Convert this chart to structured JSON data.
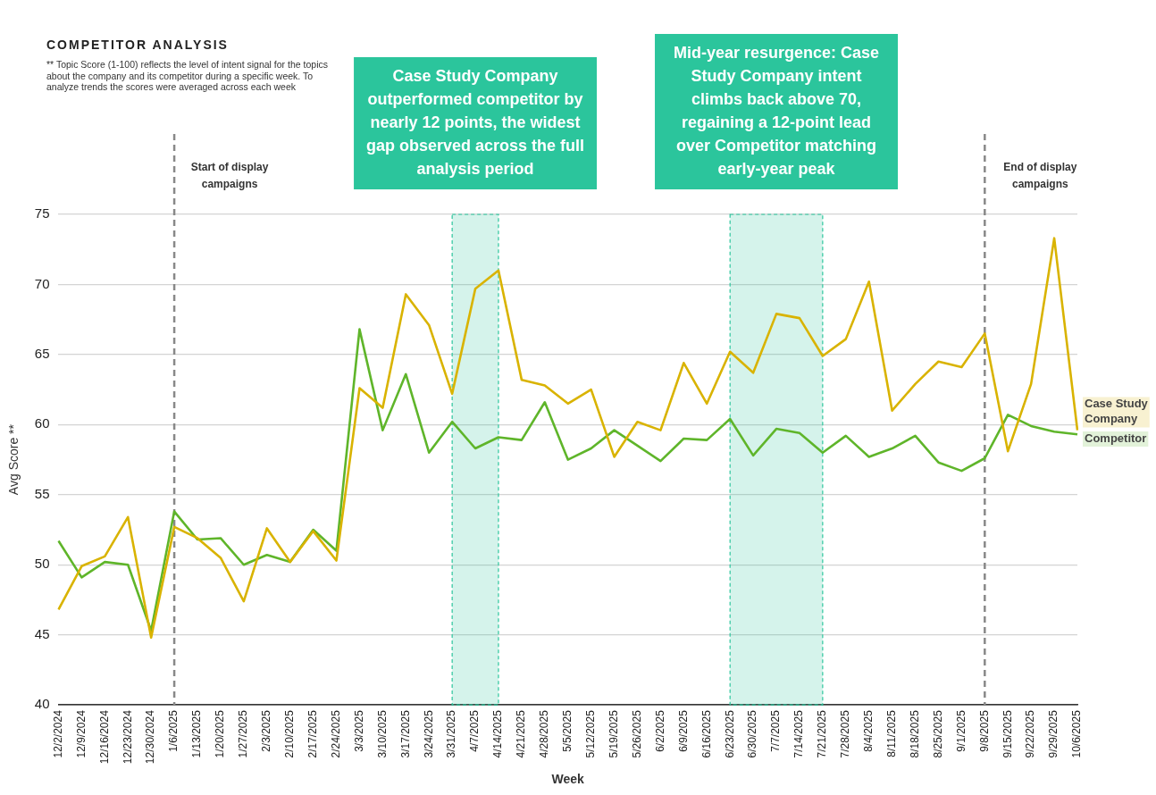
{
  "chart_data": {
    "type": "line",
    "title": "COMPETITOR ANALYSIS",
    "subtitle": "** Topic Score (1-100) reflects the level of intent signal for the topics about the company and its competitor during a specific week. To analyze trends the scores were averaged across each week",
    "xlabel": "Week",
    "ylabel": "Avg Score **",
    "categories": [
      "12/2/2024",
      "12/9/2024",
      "12/16/2024",
      "12/23/2024",
      "12/30/2024",
      "1/6/2025",
      "1/13/2025",
      "1/20/2025",
      "1/27/2025",
      "2/3/2025",
      "2/10/2025",
      "2/17/2025",
      "2/24/2025",
      "3/3/2025",
      "3/10/2025",
      "3/17/2025",
      "3/24/2025",
      "3/31/2025",
      "4/7/2025",
      "4/14/2025",
      "4/21/2025",
      "4/28/2025",
      "5/5/2025",
      "5/12/2025",
      "5/19/2025",
      "5/26/2025",
      "6/2/2025",
      "6/9/2025",
      "6/16/2025",
      "6/23/2025",
      "6/30/2025",
      "7/7/2025",
      "7/14/2025",
      "7/21/2025",
      "7/28/2025",
      "8/4/2025",
      "8/11/2025",
      "8/18/2025",
      "8/25/2025",
      "9/1/2025",
      "9/8/2025",
      "9/15/2025",
      "9/22/2025",
      "9/29/2025",
      "10/6/2025"
    ],
    "series": [
      {
        "name": "Case Study Company",
        "color": "#d9b300",
        "values": [
          46.8,
          49.9,
          50.6,
          53.4,
          44.8,
          52.7,
          51.9,
          50.5,
          47.4,
          52.6,
          50.2,
          52.4,
          50.3,
          62.6,
          61.2,
          69.3,
          67.1,
          62.2,
          69.7,
          71.0,
          63.2,
          62.8,
          61.5,
          62.5,
          57.7,
          60.2,
          59.6,
          64.4,
          61.5,
          65.2,
          63.7,
          67.9,
          67.6,
          64.9,
          66.1,
          70.2,
          61.0,
          62.9,
          64.5,
          64.1,
          66.5,
          58.1,
          62.9,
          73.3,
          59.6
        ]
      },
      {
        "name": "Competitor",
        "color": "#5fb52a",
        "values": [
          51.7,
          49.1,
          50.2,
          50.0,
          45.3,
          53.8,
          51.8,
          51.9,
          50.0,
          50.7,
          50.2,
          52.5,
          51.0,
          66.8,
          59.6,
          63.6,
          58.0,
          60.2,
          58.3,
          59.1,
          58.9,
          61.6,
          57.5,
          58.3,
          59.6,
          58.5,
          57.4,
          59.0,
          58.9,
          60.4,
          57.8,
          59.7,
          59.4,
          58.0,
          59.2,
          57.7,
          58.3,
          59.2,
          57.3,
          56.7,
          57.6,
          60.7,
          59.9,
          59.5,
          59.3
        ]
      }
    ],
    "ylim": [
      40,
      75
    ],
    "yticks": [
      40,
      45,
      50,
      55,
      60,
      65,
      70,
      75
    ],
    "grid": "y",
    "legend": "right",
    "marker": "none",
    "line_style": "solid",
    "ref_lines": [
      {
        "axis": "x",
        "value": "1/6/2025",
        "label": "Start of display campaigns",
        "color": "#888888",
        "line_style": "dashed"
      },
      {
        "axis": "x",
        "value": "9/8/2025",
        "label": "End of display campaigns",
        "color": "#888888",
        "line_style": "dashed"
      }
    ],
    "bands": [
      {
        "axis": "x",
        "from": "3/31/2025",
        "to": "4/14/2025",
        "color": "#2bc59c"
      },
      {
        "axis": "x",
        "from": "6/23/2025",
        "to": "7/21/2025",
        "color": "#2bc59c"
      }
    ],
    "annotations": [
      "Case Study Company outperformed competitor by nearly 12 points, the widest gap observed across the full analysis period",
      "Mid-year resurgence: Case Study Company intent climbs back above 70, regaining a 12-point lead over Competitor matching early-year peak"
    ]
  }
}
